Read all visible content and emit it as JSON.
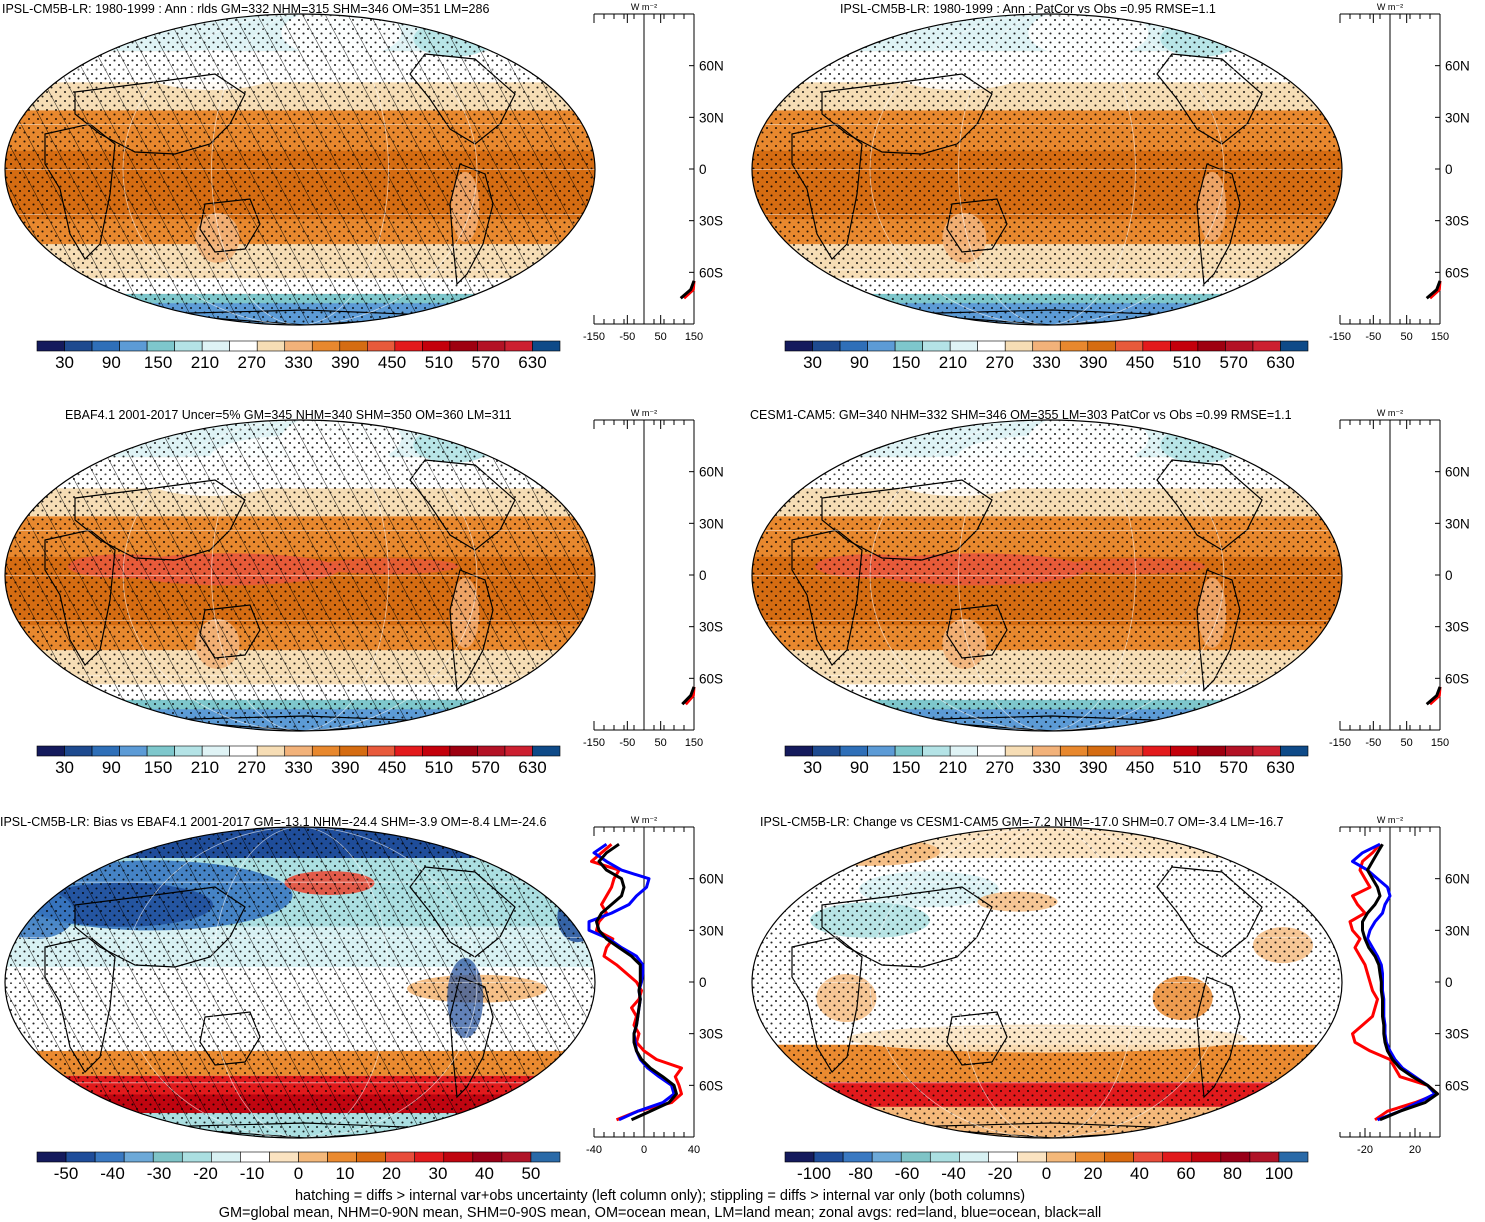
{
  "panels": [
    {
      "title": "IPSL-CM5B-LR: 1980-1999 : Ann : rlds GM=332 NHM=315 SHM=346 OM=351 LM=286",
      "kind": "clim",
      "hatch": true,
      "colorbar": {
        "labels": [
          "30",
          "90",
          "150",
          "210",
          "270",
          "330",
          "390",
          "450",
          "510",
          "570",
          "630"
        ]
      },
      "zonal": {
        "xticks": [
          "-150",
          "-50",
          "50",
          "150"
        ],
        "xlim": [
          -150,
          150
        ],
        "unit": "W m⁻²",
        "lat_labels": [
          "60N",
          "30N",
          "0",
          "30S",
          "60S"
        ]
      }
    },
    {
      "title": "IPSL-CM5B-LR: 1980-1999 : Ann : PatCor vs Obs =0.95 RMSE=1.1",
      "kind": "clim",
      "hatch": false,
      "colorbar": {
        "labels": [
          "30",
          "90",
          "150",
          "210",
          "270",
          "330",
          "390",
          "450",
          "510",
          "570",
          "630"
        ]
      },
      "zonal": {
        "xticks": [
          "-150",
          "-50",
          "50",
          "150"
        ],
        "xlim": [
          -150,
          150
        ],
        "unit": "W m⁻²",
        "lat_labels": [
          "60N",
          "30N",
          "0",
          "30S",
          "60S"
        ]
      }
    },
    {
      "title": "EBAF4.1 2001-2017 Uncer=5% GM=345 NHM=340 SHM=350 OM=360 LM=311",
      "kind": "obs",
      "hatch": true,
      "colorbar": {
        "labels": [
          "30",
          "90",
          "150",
          "210",
          "270",
          "330",
          "390",
          "450",
          "510",
          "570",
          "630"
        ]
      },
      "zonal": {
        "xticks": [
          "-150",
          "-50",
          "50",
          "150"
        ],
        "xlim": [
          -150,
          150
        ],
        "unit": "W m⁻²",
        "lat_labels": [
          "60N",
          "30N",
          "0",
          "30S",
          "60S"
        ]
      }
    },
    {
      "title": "CESM1-CAM5: GM=340 NHM=332 SHM=346 OM=355 LM=303 PatCor vs Obs =0.99 RMSE=1.1",
      "kind": "obs",
      "hatch": false,
      "colorbar": {
        "labels": [
          "30",
          "90",
          "150",
          "210",
          "270",
          "330",
          "390",
          "450",
          "510",
          "570",
          "630"
        ]
      },
      "zonal": {
        "xticks": [
          "-150",
          "-50",
          "50",
          "150"
        ],
        "xlim": [
          -150,
          150
        ],
        "unit": "W m⁻²",
        "lat_labels": [
          "60N",
          "30N",
          "0",
          "30S",
          "60S"
        ]
      }
    },
    {
      "title": "IPSL-CM5B-LR: Bias vs EBAF4.1 2001-2017 GM=-13.1 NHM=-24.4 SHM=-3.9 OM=-8.4 LM=-24.6",
      "kind": "bias",
      "hatch": true,
      "colorbar": {
        "labels": [
          "-50",
          "-40",
          "-30",
          "-20",
          "-10",
          "0",
          "10",
          "20",
          "30",
          "40",
          "50"
        ]
      },
      "zonal": {
        "xticks": [
          "-40",
          "0",
          "40"
        ],
        "xlim": [
          -40,
          40
        ],
        "unit": "W m⁻²",
        "lat_labels": [
          "60N",
          "30N",
          "0",
          "30S",
          "60S"
        ]
      }
    },
    {
      "title": "IPSL-CM5B-LR: Change vs CESM1-CAM5 GM=-7.2 NHM=-17.0 SHM=0.7 OM=-3.4 LM=-16.7",
      "kind": "change",
      "hatch": false,
      "colorbar": {
        "labels": [
          "-100",
          "-80",
          "-60",
          "-40",
          "-20",
          "0",
          "20",
          "40",
          "60",
          "80",
          "100"
        ]
      },
      "zonal": {
        "xticks": [
          "-20",
          "20"
        ],
        "xlim": [
          -40,
          40
        ],
        "unit": "W m⁻²",
        "lat_labels": [
          "60N",
          "30N",
          "0",
          "30S",
          "60S"
        ]
      }
    }
  ],
  "colors": {
    "clim_palette": [
      "#141a5c",
      "#1e4a8f",
      "#2f6fb8",
      "#5c9bd6",
      "#7ec7cc",
      "#b4e3e6",
      "#dff3f5",
      "#ffffff",
      "#f6ddb5",
      "#f2b27a",
      "#e8882e",
      "#d56c12",
      "#e85a3b",
      "#e31a1c",
      "#c4000b",
      "#9e0010",
      "#b31225",
      "#cc1f30",
      "#0e4a88"
    ],
    "diverging_palette": [
      "#141a5c",
      "#1f4d9a",
      "#3a79c2",
      "#6da9d8",
      "#7fc4c7",
      "#abdfe1",
      "#d8f1f3",
      "#ffffff",
      "#fbe3c1",
      "#f4b87a",
      "#ea8a30",
      "#d96a10",
      "#e84c3a",
      "#e11a1c",
      "#c00510",
      "#980018",
      "#b01428",
      "#2a6aa8"
    ]
  },
  "chart_data": [
    {
      "type": "heatmap",
      "title": "IPSL-CM5B-LR: 1980-1999 : Ann : rlds GM=332 NHM=315 SHM=346 OM=351 LM=286",
      "variable": "rlds",
      "units": "W m-2",
      "global_means": {
        "GM": 332,
        "NHM": 315,
        "SHM": 346,
        "OM": 351,
        "LM": 286
      },
      "colorbar_levels": [
        30,
        90,
        150,
        210,
        270,
        330,
        390,
        450,
        510,
        570,
        630
      ],
      "zonal_mean_profile": {
        "lat": [
          -75,
          -70,
          -65
        ],
        "all": [
          110,
          140,
          150
        ],
        "land": [
          120,
          148,
          150
        ],
        "xlim": [
          -150,
          150
        ]
      }
    },
    {
      "type": "heatmap",
      "title": "IPSL-CM5B-LR: 1980-1999 : Ann : PatCor vs Obs =0.95 RMSE=1.1",
      "PatCor": 0.95,
      "RMSE": 1.1,
      "colorbar_levels": [
        30,
        90,
        150,
        210,
        270,
        330,
        390,
        450,
        510,
        570,
        630
      ],
      "zonal_mean_profile": {
        "lat": [
          -75,
          -70,
          -65
        ],
        "all": [
          110,
          140,
          150
        ],
        "land": [
          120,
          148,
          150
        ],
        "xlim": [
          -150,
          150
        ]
      }
    },
    {
      "type": "heatmap",
      "title": "EBAF4.1 2001-2017 Uncer=5% GM=345 NHM=340 SHM=350 OM=360 LM=311",
      "uncertainty": "5%",
      "global_means": {
        "GM": 345,
        "NHM": 340,
        "SHM": 350,
        "OM": 360,
        "LM": 311
      },
      "colorbar_levels": [
        30,
        90,
        150,
        210,
        270,
        330,
        390,
        450,
        510,
        570,
        630
      ],
      "zonal_mean_profile": {
        "lat": [
          -75,
          -70,
          -65
        ],
        "all": [
          115,
          140,
          150
        ],
        "land": [
          125,
          148,
          150
        ],
        "xlim": [
          -150,
          150
        ]
      }
    },
    {
      "type": "heatmap",
      "title": "CESM1-CAM5: GM=340 NHM=332 SHM=346 OM=355 LM=303 PatCor vs Obs =0.99 RMSE=1.1",
      "global_means": {
        "GM": 340,
        "NHM": 332,
        "SHM": 346,
        "OM": 355,
        "LM": 303
      },
      "PatCor": 0.99,
      "RMSE": 1.1,
      "colorbar_levels": [
        30,
        90,
        150,
        210,
        270,
        330,
        390,
        450,
        510,
        570,
        630
      ],
      "zonal_mean_profile": {
        "lat": [
          -75,
          -70,
          -65
        ],
        "all": [
          110,
          140,
          150
        ],
        "land": [
          120,
          148,
          150
        ],
        "xlim": [
          -150,
          150
        ]
      }
    },
    {
      "type": "heatmap",
      "title": "IPSL-CM5B-LR: Bias vs EBAF4.1 2001-2017 GM=-13.1 NHM=-24.4 SHM=-3.9 OM=-8.4 LM=-24.6",
      "global_means": {
        "GM": -13.1,
        "NHM": -24.4,
        "SHM": -3.9,
        "OM": -8.4,
        "LM": -24.6
      },
      "colorbar_levels": [
        -50,
        -40,
        -30,
        -20,
        -10,
        0,
        10,
        20,
        30,
        40,
        50
      ],
      "zonal_mean_profile": {
        "lat": [
          -80,
          -75,
          -70,
          -65,
          -60,
          -55,
          -50,
          -45,
          -40,
          -35,
          -30,
          -25,
          -20,
          -15,
          -10,
          -5,
          0,
          5,
          10,
          15,
          20,
          25,
          30,
          35,
          40,
          45,
          50,
          55,
          60,
          65,
          70,
          75,
          80
        ],
        "all": [
          -10,
          5,
          20,
          26,
          24,
          15,
          5,
          -2,
          -6,
          -8,
          -8,
          -6,
          -5,
          -4,
          -3,
          -4,
          -3,
          -3,
          -3,
          -10,
          -20,
          -30,
          -36,
          -38,
          -34,
          -26,
          -18,
          -16,
          -18,
          -30,
          -36,
          -30,
          -20
        ],
        "land": [
          -22,
          -5,
          22,
          30,
          28,
          25,
          30,
          10,
          0,
          -6,
          -4,
          -8,
          -6,
          -10,
          -4,
          -2,
          -6,
          -14,
          -22,
          -32,
          -30,
          -25,
          -38,
          -36,
          -30,
          -34,
          -30,
          -26,
          -24,
          -20,
          -42,
          -34,
          -26
        ],
        "ocean": [
          -20,
          -5,
          15,
          24,
          22,
          12,
          3,
          -3,
          -6,
          -7,
          -8,
          -6,
          -5,
          -4,
          -3,
          -4,
          -2,
          -1,
          -1,
          -6,
          -18,
          -28,
          -44,
          -44,
          -26,
          -12,
          -6,
          2,
          4,
          -18,
          -30,
          -40,
          -30
        ],
        "xlim": [
          -40,
          40
        ]
      }
    },
    {
      "type": "heatmap",
      "title": "IPSL-CM5B-LR: Change vs CESM1-CAM5 GM=-7.2 NHM=-17.0 SHM=0.7 OM=-3.4 LM=-16.7",
      "global_means": {
        "GM": -7.2,
        "NHM": -17.0,
        "SHM": 0.7,
        "OM": -3.4,
        "LM": -16.7
      },
      "colorbar_levels": [
        -100,
        -80,
        -60,
        -40,
        -20,
        0,
        20,
        40,
        60,
        80,
        100
      ],
      "zonal_mean_profile": {
        "lat": [
          -80,
          -75,
          -70,
          -65,
          -60,
          -55,
          -50,
          -45,
          -40,
          -35,
          -30,
          -25,
          -20,
          -15,
          -10,
          -5,
          0,
          5,
          10,
          15,
          20,
          25,
          30,
          35,
          40,
          45,
          50,
          55,
          60,
          65,
          70,
          75,
          80
        ],
        "all": [
          -8,
          8,
          28,
          38,
          30,
          18,
          8,
          2,
          -2,
          -4,
          -5,
          -5,
          -6,
          -6,
          -6,
          -7,
          -7,
          -8,
          -9,
          -12,
          -17,
          -20,
          -22,
          -22,
          -18,
          -12,
          -8,
          -10,
          -14,
          -18,
          -14,
          -10,
          -6
        ],
        "land": [
          -12,
          -2,
          20,
          38,
          30,
          8,
          4,
          0,
          -16,
          -28,
          -30,
          -22,
          -14,
          -12,
          -10,
          -14,
          -16,
          -18,
          -20,
          -24,
          -28,
          -24,
          -30,
          -32,
          -20,
          -26,
          -30,
          -16,
          -20,
          -24,
          -22,
          -14,
          -8
        ],
        "ocean": [
          -10,
          8,
          22,
          36,
          30,
          20,
          10,
          4,
          0,
          -3,
          -4,
          -4,
          -5,
          -5,
          -5,
          -6,
          -6,
          -6,
          -7,
          -10,
          -14,
          -18,
          -16,
          -12,
          -6,
          -4,
          0,
          -2,
          -10,
          -18,
          -30,
          -22,
          -8
        ],
        "xlim": [
          -40,
          40
        ]
      }
    }
  ],
  "footer": {
    "line1": "hatching = diffs > internal var+obs uncertainty (left column only); stippling = diffs > internal var only (both columns)",
    "line2": "GM=global mean, NHM=0-90N mean, SHM=0-90S mean, OM=ocean mean, LM=land mean; zonal avgs: red=land, blue=ocean, black=all"
  }
}
